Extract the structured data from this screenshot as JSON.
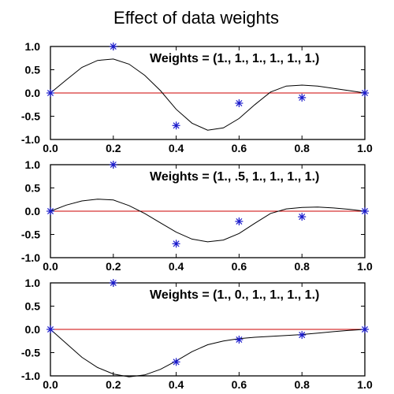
{
  "title": "Effect of data weights",
  "chart_data": [
    {
      "type": "line",
      "annotation": "Weights = (1., 1., 1., 1., 1., 1.)",
      "xlim": [
        0.0,
        1.0
      ],
      "ylim": [
        -1.0,
        1.0
      ],
      "x_ticks": [
        "0.0",
        "0.2",
        "0.4",
        "0.6",
        "0.8",
        "1.0"
      ],
      "y_ticks": [
        "1.0",
        "0.5",
        "0.0",
        "-0.5",
        "-1.0"
      ],
      "points": {
        "x": [
          0.0,
          0.2,
          0.4,
          0.6,
          0.8,
          1.0
        ],
        "y": [
          0.0,
          1.0,
          -0.7,
          -0.22,
          -0.1,
          0.0
        ]
      },
      "curve": {
        "x": [
          0.0,
          0.05,
          0.1,
          0.15,
          0.2,
          0.25,
          0.3,
          0.35,
          0.4,
          0.45,
          0.5,
          0.55,
          0.6,
          0.65,
          0.7,
          0.75,
          0.8,
          0.85,
          0.9,
          0.95,
          1.0
        ],
        "y": [
          0.0,
          0.28,
          0.55,
          0.7,
          0.73,
          0.62,
          0.38,
          0.05,
          -0.35,
          -0.65,
          -0.8,
          -0.75,
          -0.55,
          -0.25,
          0.02,
          0.15,
          0.17,
          0.15,
          0.1,
          0.05,
          0.0
        ]
      },
      "zero_line": 0.0
    },
    {
      "type": "line",
      "annotation": "Weights = (1., .5, 1., 1., 1., 1.)",
      "xlim": [
        0.0,
        1.0
      ],
      "ylim": [
        -1.0,
        1.0
      ],
      "x_ticks": [
        "0.0",
        "0.2",
        "0.4",
        "0.6",
        "0.8",
        "1.0"
      ],
      "y_ticks": [
        "1.0",
        "0.5",
        "0.0",
        "-0.5",
        "-1.0"
      ],
      "points": {
        "x": [
          0.0,
          0.2,
          0.4,
          0.6,
          0.8,
          1.0
        ],
        "y": [
          0.0,
          1.0,
          -0.7,
          -0.22,
          -0.12,
          0.0
        ]
      },
      "curve": {
        "x": [
          0.0,
          0.05,
          0.1,
          0.15,
          0.2,
          0.25,
          0.3,
          0.35,
          0.4,
          0.45,
          0.5,
          0.55,
          0.6,
          0.65,
          0.7,
          0.75,
          0.8,
          0.85,
          0.9,
          0.95,
          1.0
        ],
        "y": [
          0.0,
          0.13,
          0.22,
          0.26,
          0.24,
          0.12,
          -0.05,
          -0.25,
          -0.45,
          -0.6,
          -0.66,
          -0.62,
          -0.48,
          -0.26,
          -0.05,
          0.05,
          0.08,
          0.09,
          0.07,
          0.04,
          0.0
        ]
      },
      "zero_line": 0.0
    },
    {
      "type": "line",
      "annotation": "Weights = (1., 0., 1., 1., 1., 1.)",
      "xlim": [
        0.0,
        1.0
      ],
      "ylim": [
        -1.0,
        1.0
      ],
      "x_ticks": [
        "0.0",
        "0.2",
        "0.4",
        "0.6",
        "0.8",
        "1.0"
      ],
      "y_ticks": [
        "1.0",
        "0.5",
        "0.0",
        "-0.5",
        "-1.0"
      ],
      "points": {
        "x": [
          0.0,
          0.2,
          0.4,
          0.6,
          0.8,
          1.0
        ],
        "y": [
          0.0,
          1.0,
          -0.7,
          -0.22,
          -0.12,
          0.0
        ]
      },
      "curve": {
        "x": [
          0.0,
          0.05,
          0.1,
          0.15,
          0.2,
          0.25,
          0.3,
          0.35,
          0.4,
          0.45,
          0.5,
          0.55,
          0.6,
          0.65,
          0.7,
          0.75,
          0.8,
          0.85,
          0.9,
          0.95,
          1.0
        ],
        "y": [
          0.0,
          -0.3,
          -0.6,
          -0.82,
          -0.96,
          -1.02,
          -0.98,
          -0.86,
          -0.68,
          -0.48,
          -0.33,
          -0.25,
          -0.2,
          -0.17,
          -0.15,
          -0.13,
          -0.11,
          -0.08,
          -0.05,
          -0.02,
          0.0
        ]
      },
      "zero_line": 0.0
    }
  ],
  "colors": {
    "zero_line": "#cc0000",
    "markers": "#1a1acc",
    "curve": "#000000"
  }
}
